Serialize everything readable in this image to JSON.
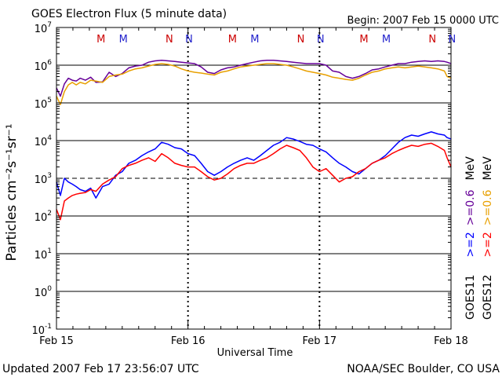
{
  "chart_data": {
    "type": "line",
    "title": "GOES Electron Flux (5 minute data)",
    "begin_label": "Begin: 2007 Feb 15 0000 UTC",
    "xlabel": "Universal Time",
    "ylabel": "Particles cm⁻²s⁻¹sr⁻¹",
    "x_unit": "days since 2007 Feb 15 0000 UTC",
    "xlim": [
      0,
      3
    ],
    "x_ticks": [
      {
        "x": 0,
        "label": "Feb 15"
      },
      {
        "x": 1,
        "label": "Feb 16"
      },
      {
        "x": 2,
        "label": "Feb 17"
      },
      {
        "x": 3,
        "label": "Feb 18"
      }
    ],
    "yscale": "log",
    "ylim_exp": [
      -1,
      7
    ],
    "y_ticks": [
      {
        "exp": -1,
        "base": "10",
        "sup": "-1"
      },
      {
        "exp": 0,
        "base": "10",
        "sup": "0"
      },
      {
        "exp": 1,
        "base": "10",
        "sup": "1"
      },
      {
        "exp": 2,
        "base": "10",
        "sup": "2"
      },
      {
        "exp": 3,
        "base": "10",
        "sup": "3"
      },
      {
        "exp": 4,
        "base": "10",
        "sup": "4"
      },
      {
        "exp": 5,
        "base": "10",
        "sup": "5"
      },
      {
        "exp": 6,
        "base": "10",
        "sup": "6"
      },
      {
        "exp": 7,
        "base": "10",
        "sup": "7"
      }
    ],
    "threshold": {
      "exp": 3,
      "style": "dashed"
    },
    "markers": [
      {
        "x": 0.35,
        "label": "M",
        "color": "#cc0000"
      },
      {
        "x": 0.52,
        "label": "M",
        "color": "#2222cc"
      },
      {
        "x": 0.87,
        "label": "N",
        "color": "#cc0000"
      },
      {
        "x": 1.02,
        "label": "N",
        "color": "#2222cc"
      },
      {
        "x": 1.35,
        "label": "M",
        "color": "#cc0000"
      },
      {
        "x": 1.52,
        "label": "M",
        "color": "#2222cc"
      },
      {
        "x": 1.87,
        "label": "N",
        "color": "#cc0000"
      },
      {
        "x": 2.02,
        "label": "N",
        "color": "#2222cc"
      },
      {
        "x": 2.35,
        "label": "M",
        "color": "#cc0000"
      },
      {
        "x": 2.52,
        "label": "M",
        "color": "#2222cc"
      },
      {
        "x": 2.87,
        "label": "N",
        "color": "#cc0000"
      },
      {
        "x": 3.02,
        "label": "N",
        "color": "#2222cc"
      }
    ],
    "series": [
      {
        "name": "GOES11 >=0.6 MeV",
        "color": "#660099",
        "x": [
          0,
          0.03,
          0.06,
          0.09,
          0.12,
          0.15,
          0.18,
          0.22,
          0.26,
          0.3,
          0.35,
          0.4,
          0.45,
          0.5,
          0.55,
          0.6,
          0.65,
          0.7,
          0.75,
          0.8,
          0.85,
          0.9,
          0.95,
          1.0,
          1.05,
          1.1,
          1.15,
          1.2,
          1.25,
          1.3,
          1.35,
          1.4,
          1.45,
          1.5,
          1.55,
          1.6,
          1.65,
          1.7,
          1.75,
          1.8,
          1.85,
          1.9,
          1.95,
          2.0,
          2.05,
          2.1,
          2.15,
          2.2,
          2.25,
          2.3,
          2.35,
          2.4,
          2.45,
          2.5,
          2.55,
          2.6,
          2.65,
          2.7,
          2.75,
          2.8,
          2.85,
          2.9,
          2.95,
          2.97,
          3.0
        ],
        "y": [
          250000.0,
          150000.0,
          320000.0,
          450000.0,
          400000.0,
          380000.0,
          450000.0,
          400000.0,
          480000.0,
          350000.0,
          360000.0,
          650000.0,
          500000.0,
          600000.0,
          850000.0,
          950000.0,
          1000000.0,
          1200000.0,
          1300000.0,
          1350000.0,
          1300000.0,
          1250000.0,
          1200000.0,
          1150000.0,
          1100000.0,
          900000.0,
          650000.0,
          600000.0,
          750000.0,
          850000.0,
          900000.0,
          1000000.0,
          1100000.0,
          1200000.0,
          1300000.0,
          1350000.0,
          1350000.0,
          1300000.0,
          1250000.0,
          1200000.0,
          1150000.0,
          1100000.0,
          1100000.0,
          1100000.0,
          1000000.0,
          700000.0,
          650000.0,
          500000.0,
          450000.0,
          500000.0,
          600000.0,
          750000.0,
          800000.0,
          900000.0,
          1000000.0,
          1100000.0,
          1100000.0,
          1200000.0,
          1250000.0,
          1300000.0,
          1250000.0,
          1300000.0,
          1250000.0,
          1200000.0,
          1100000.0
        ]
      },
      {
        "name": "GOES12 >=0.6 MeV",
        "color": "#e8a000",
        "x": [
          0,
          0.03,
          0.06,
          0.09,
          0.12,
          0.15,
          0.18,
          0.22,
          0.26,
          0.3,
          0.35,
          0.4,
          0.45,
          0.5,
          0.55,
          0.6,
          0.65,
          0.7,
          0.75,
          0.8,
          0.85,
          0.9,
          0.95,
          1.0,
          1.05,
          1.1,
          1.15,
          1.2,
          1.25,
          1.3,
          1.35,
          1.4,
          1.45,
          1.5,
          1.55,
          1.6,
          1.65,
          1.7,
          1.75,
          1.8,
          1.85,
          1.9,
          1.95,
          2.0,
          2.05,
          2.1,
          2.15,
          2.2,
          2.25,
          2.3,
          2.35,
          2.4,
          2.45,
          2.5,
          2.55,
          2.6,
          2.65,
          2.7,
          2.75,
          2.8,
          2.85,
          2.9,
          2.95,
          2.97,
          3.0
        ],
        "y": [
          150000.0,
          90000.0,
          200000.0,
          300000.0,
          350000.0,
          300000.0,
          350000.0,
          320000.0,
          400000.0,
          380000.0,
          350000.0,
          500000.0,
          550000.0,
          580000.0,
          700000.0,
          800000.0,
          850000.0,
          950000.0,
          1050000.0,
          1100000.0,
          1050000.0,
          950000.0,
          800000.0,
          700000.0,
          650000.0,
          620000.0,
          580000.0,
          550000.0,
          650000.0,
          700000.0,
          800000.0,
          900000.0,
          950000.0,
          1000000.0,
          1050000.0,
          1100000.0,
          1100000.0,
          1050000.0,
          1000000.0,
          900000.0,
          800000.0,
          700000.0,
          650000.0,
          600000.0,
          550000.0,
          480000.0,
          450000.0,
          420000.0,
          400000.0,
          450000.0,
          550000.0,
          650000.0,
          700000.0,
          800000.0,
          850000.0,
          900000.0,
          850000.0,
          900000.0,
          950000.0,
          900000.0,
          850000.0,
          800000.0,
          700000.0,
          500000.0,
          450000.0
        ]
      },
      {
        "name": "GOES11 >=2 MeV",
        "color": "#0000ff",
        "x": [
          0,
          0.03,
          0.06,
          0.09,
          0.12,
          0.15,
          0.18,
          0.22,
          0.26,
          0.3,
          0.35,
          0.4,
          0.45,
          0.5,
          0.55,
          0.6,
          0.65,
          0.7,
          0.75,
          0.8,
          0.85,
          0.9,
          0.95,
          1.0,
          1.05,
          1.1,
          1.15,
          1.2,
          1.25,
          1.3,
          1.35,
          1.4,
          1.45,
          1.5,
          1.55,
          1.6,
          1.65,
          1.7,
          1.75,
          1.8,
          1.85,
          1.9,
          1.95,
          2.0,
          2.05,
          2.1,
          2.15,
          2.2,
          2.25,
          2.3,
          2.35,
          2.4,
          2.45,
          2.5,
          2.55,
          2.6,
          2.65,
          2.7,
          2.75,
          2.8,
          2.85,
          2.9,
          2.95,
          2.97,
          3.0
        ],
        "y": [
          800,
          350,
          1000,
          800,
          700,
          600,
          500,
          450,
          550,
          300,
          600,
          700,
          1200,
          1500,
          2500,
          3000,
          4000,
          5000,
          6000,
          9000,
          8000,
          6500,
          6000,
          4500,
          4000,
          2500,
          1500,
          1200,
          1500,
          2000,
          2500,
          3000,
          3500,
          3000,
          4000,
          5500,
          7500,
          9000,
          12000,
          11000,
          9500,
          8000,
          7500,
          6000,
          5000,
          3500,
          2500,
          2000,
          1500,
          1300,
          1800,
          2500,
          3000,
          4000,
          6000,
          9000,
          12000,
          14000,
          13000,
          15000,
          17000,
          15000,
          14000,
          12000,
          11000
        ]
      },
      {
        "name": "GOES12 >=2 MeV",
        "color": "#ff0000",
        "x": [
          0,
          0.03,
          0.06,
          0.09,
          0.12,
          0.15,
          0.18,
          0.22,
          0.26,
          0.3,
          0.35,
          0.4,
          0.45,
          0.5,
          0.55,
          0.6,
          0.65,
          0.7,
          0.75,
          0.8,
          0.85,
          0.9,
          0.95,
          1.0,
          1.05,
          1.1,
          1.15,
          1.2,
          1.25,
          1.3,
          1.35,
          1.4,
          1.45,
          1.5,
          1.55,
          1.6,
          1.65,
          1.7,
          1.75,
          1.8,
          1.85,
          1.9,
          1.95,
          2.0,
          2.05,
          2.1,
          2.15,
          2.2,
          2.25,
          2.3,
          2.35,
          2.4,
          2.45,
          2.5,
          2.55,
          2.6,
          2.65,
          2.7,
          2.75,
          2.8,
          2.85,
          2.9,
          2.95,
          2.97,
          3.0
        ],
        "y": [
          150,
          80,
          250,
          300,
          350,
          380,
          400,
          420,
          500,
          450,
          700,
          900,
          1100,
          1800,
          2200,
          2500,
          3000,
          3500,
          2800,
          4500,
          3500,
          2500,
          2200,
          2000,
          2000,
          1500,
          1100,
          900,
          1000,
          1300,
          1800,
          2200,
          2500,
          2500,
          3000,
          3500,
          4500,
          6000,
          7500,
          6500,
          5500,
          3500,
          2000,
          1500,
          1800,
          1200,
          800,
          1000,
          1100,
          1500,
          1800,
          2500,
          3000,
          3500,
          4500,
          5500,
          6500,
          7500,
          7000,
          8000,
          8500,
          7000,
          5500,
          3500,
          2000
        ]
      }
    ],
    "legend": [
      {
        "satellite": "GOES11",
        "items": [
          {
            "text": ">=2",
            "color": "#0000ff"
          },
          {
            "text": ">=0.6",
            "color": "#660099"
          }
        ],
        "unit": "MeV"
      },
      {
        "satellite": "GOES12",
        "items": [
          {
            "text": ">=2",
            "color": "#ff0000"
          },
          {
            "text": ">=0.6",
            "color": "#e8a000"
          }
        ],
        "unit": "MeV"
      }
    ]
  },
  "footer": {
    "updated": "Updated 2007 Feb 17 23:56:07 UTC",
    "credit": "NOAA/SEC Boulder, CO USA"
  }
}
